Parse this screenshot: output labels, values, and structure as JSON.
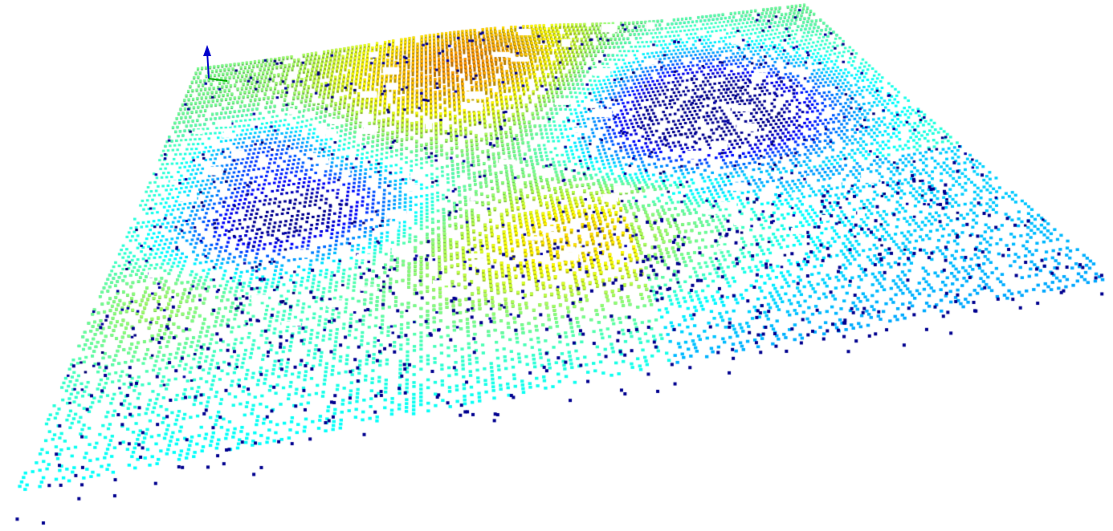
{
  "viewer": {
    "background": "#ffffff",
    "content": "voxel-terrain-point-cloud",
    "colormap": "jet",
    "colormap_stops": [
      "#00008f",
      "#0000ff",
      "#0080ff",
      "#00ffff",
      "#80ff80",
      "#ffff00",
      "#ff8000",
      "#ff0000"
    ],
    "axis_indicator": {
      "icon": "axis-arrow-icon",
      "axes": [
        "z"
      ],
      "colors": {
        "z": "#0000cc",
        "x": "#00aa00"
      }
    }
  }
}
